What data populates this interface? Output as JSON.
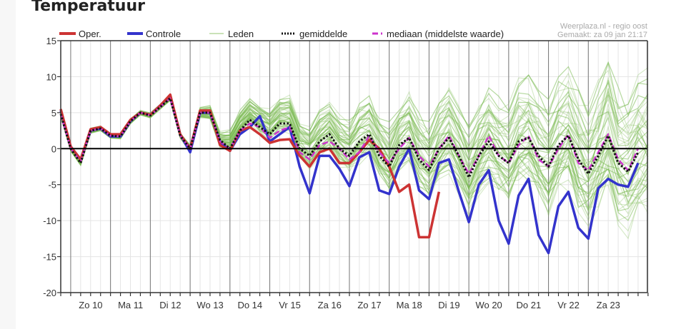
{
  "page_title": "Temperatuur",
  "source_line1": "Weerplaza.nl - regio oost",
  "source_line2": "Gemaakt: za 09 jan 21:17",
  "colors": {
    "oper": "#cc3333",
    "controle": "#3333cc",
    "leden": "#79b950",
    "mean": "#111111",
    "median": "#cc33cc"
  },
  "chart_data": {
    "type": "line",
    "title": "Temperatuur",
    "xlabel": "",
    "ylabel": "",
    "ylim": [
      -20,
      15
    ],
    "yticks": [
      15,
      10,
      5,
      0,
      -5,
      -10,
      -15,
      -20
    ],
    "day_labels": [
      "Zo 10",
      "Ma 11",
      "Di 12",
      "Wo 13",
      "Do 14",
      "Vr 15",
      "Za 16",
      "Zo 17",
      "Ma 18",
      "Di 19",
      "Wo 20",
      "Do 21",
      "Vr 22",
      "Za 23"
    ],
    "step_hours": 6,
    "grid": true,
    "legend": [
      "Oper.",
      "Controle",
      "Leden",
      "gemiddelde",
      "mediaan (middelste waarde)"
    ],
    "legend_position": "top",
    "series": [
      {
        "name": "Oper.",
        "values": [
          5.5,
          0.3,
          -1.5,
          2.7,
          3,
          2,
          2,
          4,
          5,
          4.7,
          6,
          7.5,
          2,
          0,
          5.3,
          5.3,
          0.5,
          -0.3,
          2.5,
          3,
          2,
          0.8,
          1.2,
          1.3,
          -1,
          -2.5,
          -0.5,
          0,
          -2,
          -2,
          -0.5,
          1.2,
          0,
          -2.5,
          -6,
          -5,
          -12.3,
          -12.3,
          -6
        ]
      },
      {
        "name": "Controle",
        "values": [
          5.3,
          0.3,
          -1.5,
          2.5,
          2.8,
          1.7,
          1.7,
          3.8,
          5,
          4.7,
          6,
          7.3,
          2,
          -0.5,
          5,
          5,
          1,
          -0.3,
          2,
          3,
          4.5,
          1,
          2,
          3,
          -2.5,
          -6.2,
          -1,
          -1,
          -2.8,
          -5.2,
          -1.2,
          -0.5,
          -5.8,
          -6.3,
          -2.5,
          0,
          -5.8,
          -7,
          -2,
          -1.5,
          -6,
          -10.2,
          -5,
          -3,
          -10,
          -13.2,
          -6.5,
          -4.2,
          -12,
          -14.5,
          -8,
          -6,
          -11,
          -12.5,
          -5.5,
          -4.2,
          -5,
          -5.3,
          -2
        ]
      },
      {
        "name": "gemiddelde",
        "values": [
          4.8,
          0,
          -2,
          2.5,
          2.8,
          1.8,
          1.7,
          3.8,
          5,
          4.6,
          5.8,
          7,
          1.8,
          0,
          5,
          5,
          1.2,
          0,
          2.5,
          4,
          3,
          2,
          3.5,
          3.5,
          0,
          -1,
          1,
          2,
          0,
          -1,
          1,
          2,
          -1,
          -2.5,
          0.5,
          1.5,
          -1.5,
          -3,
          0,
          1.5,
          -1,
          -4,
          -1,
          1,
          -1,
          -2,
          1,
          1.5,
          -1,
          -2.5,
          0.5,
          1.8,
          -1.5,
          -3.5,
          -1,
          1.8,
          -2,
          -3.2,
          -0.5
        ]
      },
      {
        "name": "mediaan (middelste waarde)",
        "values": [
          4.8,
          0,
          -1.8,
          2.5,
          2.8,
          1.8,
          1.7,
          3.8,
          5,
          4.6,
          5.8,
          7,
          1.8,
          0,
          5,
          5,
          1,
          0,
          2.5,
          3.5,
          3,
          1.5,
          2.5,
          3,
          -0.5,
          -1.5,
          0.5,
          1,
          0,
          -1.5,
          -0.5,
          1.8,
          -0.5,
          -2,
          0,
          1.5,
          -1,
          -2.5,
          0,
          1.8,
          -1,
          -3.5,
          -1,
          1.8,
          -1,
          -2,
          0.5,
          1.8,
          -1.5,
          -2.5,
          0,
          2,
          -2,
          -3,
          -0.5,
          2,
          -1.5,
          -3,
          0
        ]
      }
    ]
  }
}
